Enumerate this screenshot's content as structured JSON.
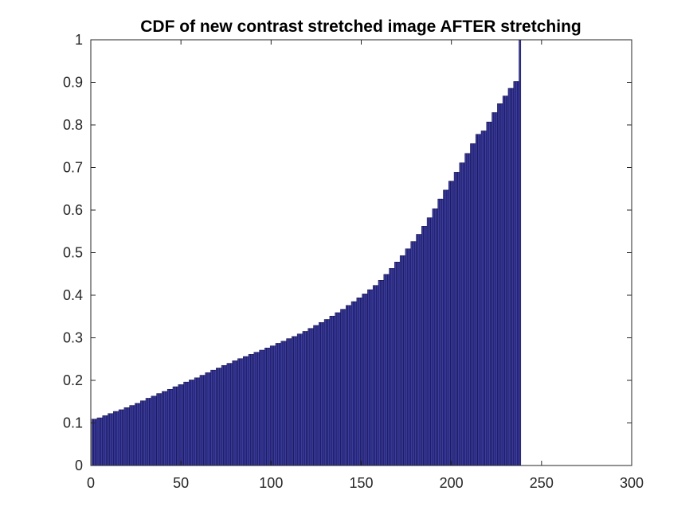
{
  "chart_data": {
    "type": "bar",
    "title": "CDF of new contrast stretched image AFTER stretching",
    "xlabel": "",
    "ylabel": "",
    "xlim": [
      0,
      300
    ],
    "ylim": [
      0,
      1
    ],
    "x_ticks": [
      "0",
      "50",
      "100",
      "150",
      "200",
      "250",
      "300"
    ],
    "y_ticks": [
      "0",
      "0.1",
      "0.2",
      "0.3",
      "0.4",
      "0.5",
      "0.6",
      "0.7",
      "0.8",
      "0.9",
      "1"
    ],
    "grid": false,
    "bar_color": "#3b3b9f",
    "edge_color": "#0b0b3b",
    "x_start": 1,
    "values": [
      0.109,
      0.109,
      0.109,
      0.112,
      0.112,
      0.112,
      0.117,
      0.117,
      0.117,
      0.122,
      0.122,
      0.122,
      0.127,
      0.127,
      0.127,
      0.131,
      0.131,
      0.131,
      0.136,
      0.136,
      0.136,
      0.141,
      0.141,
      0.141,
      0.146,
      0.146,
      0.146,
      0.152,
      0.152,
      0.152,
      0.158,
      0.158,
      0.158,
      0.163,
      0.163,
      0.163,
      0.169,
      0.169,
      0.169,
      0.174,
      0.174,
      0.174,
      0.179,
      0.179,
      0.179,
      0.185,
      0.185,
      0.185,
      0.19,
      0.19,
      0.19,
      0.196,
      0.196,
      0.196,
      0.201,
      0.201,
      0.201,
      0.206,
      0.206,
      0.206,
      0.212,
      0.212,
      0.212,
      0.218,
      0.218,
      0.218,
      0.224,
      0.224,
      0.224,
      0.229,
      0.229,
      0.229,
      0.235,
      0.235,
      0.235,
      0.24,
      0.24,
      0.24,
      0.246,
      0.246,
      0.246,
      0.251,
      0.251,
      0.251,
      0.256,
      0.256,
      0.256,
      0.261,
      0.261,
      0.261,
      0.266,
      0.266,
      0.266,
      0.271,
      0.271,
      0.271,
      0.276,
      0.276,
      0.276,
      0.281,
      0.281,
      0.281,
      0.287,
      0.287,
      0.287,
      0.292,
      0.292,
      0.292,
      0.298,
      0.298,
      0.298,
      0.303,
      0.303,
      0.303,
      0.309,
      0.309,
      0.309,
      0.315,
      0.315,
      0.315,
      0.322,
      0.322,
      0.322,
      0.329,
      0.329,
      0.329,
      0.336,
      0.336,
      0.336,
      0.343,
      0.343,
      0.343,
      0.351,
      0.351,
      0.351,
      0.359,
      0.359,
      0.359,
      0.367,
      0.367,
      0.367,
      0.376,
      0.376,
      0.376,
      0.385,
      0.385,
      0.385,
      0.394,
      0.394,
      0.394,
      0.403,
      0.403,
      0.403,
      0.413,
      0.413,
      0.413,
      0.423,
      0.423,
      0.423,
      0.435,
      0.435,
      0.435,
      0.449,
      0.449,
      0.449,
      0.463,
      0.463,
      0.463,
      0.478,
      0.478,
      0.478,
      0.493,
      0.493,
      0.493,
      0.509,
      0.509,
      0.509,
      0.526,
      0.526,
      0.526,
      0.543,
      0.543,
      0.543,
      0.562,
      0.562,
      0.562,
      0.582,
      0.582,
      0.582,
      0.603,
      0.603,
      0.603,
      0.626,
      0.626,
      0.626,
      0.647,
      0.647,
      0.647,
      0.668,
      0.668,
      0.668,
      0.689,
      0.689,
      0.689,
      0.711,
      0.711,
      0.711,
      0.733,
      0.733,
      0.733,
      0.756,
      0.756,
      0.756,
      0.778,
      0.778,
      0.778,
      0.786,
      0.786,
      0.786,
      0.807,
      0.807,
      0.807,
      0.829,
      0.829,
      0.829,
      0.85,
      0.85,
      0.85,
      0.868,
      0.868,
      0.868,
      0.886,
      0.886,
      0.886,
      0.902,
      0.902,
      0.902,
      1.0
    ]
  }
}
